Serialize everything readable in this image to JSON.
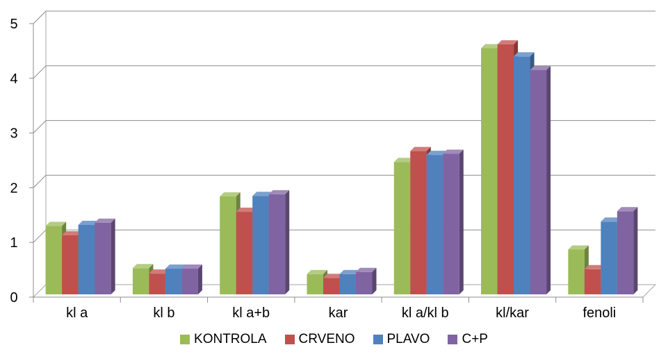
{
  "chart_data": {
    "type": "bar",
    "categories": [
      "kl a",
      "kl b",
      "kl a+b",
      "kar",
      "kl  a/kl b",
      "kl/kar",
      "fenoli"
    ],
    "series": [
      {
        "name": "KONTROLA",
        "color": "#9BBB59",
        "values": [
          1.3,
          0.53,
          1.84,
          0.42,
          2.47,
          4.55,
          0.87
        ]
      },
      {
        "name": "CRVENO",
        "color": "#C0504D",
        "values": [
          1.13,
          0.43,
          1.56,
          0.35,
          2.67,
          4.62,
          0.51
        ]
      },
      {
        "name": "PLAVO",
        "color": "#4F81BD",
        "values": [
          1.32,
          0.52,
          1.85,
          0.42,
          2.6,
          4.4,
          1.38
        ]
      },
      {
        "name": "C+P",
        "color": "#8064A2",
        "values": [
          1.36,
          0.52,
          1.88,
          0.46,
          2.62,
          4.15,
          1.57
        ]
      }
    ],
    "yticks": [
      "0",
      "1",
      "2",
      "3",
      "4",
      "5"
    ],
    "ylim": [
      0,
      5
    ],
    "grid": true,
    "legend_position": "bottom"
  }
}
